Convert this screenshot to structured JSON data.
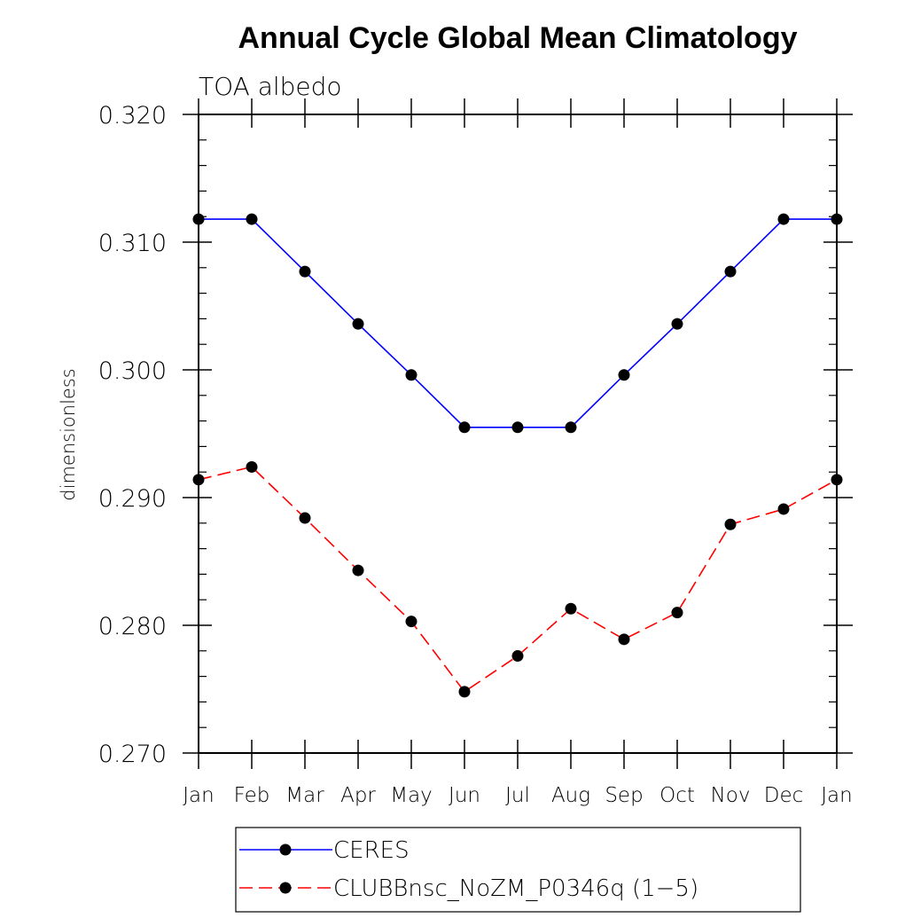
{
  "chart_data": {
    "type": "line",
    "title": "Annual Cycle Global Mean Climatology",
    "subtitle": "TOA albedo",
    "xlabel": "",
    "ylabel": "dimensionless",
    "ylim": [
      0.27,
      0.32
    ],
    "y_ticks": [
      "0.320",
      "0.310",
      "0.300",
      "0.290",
      "0.280",
      "0.270"
    ],
    "categories": [
      "Jan",
      "Feb",
      "Mar",
      "Apr",
      "May",
      "Jun",
      "Jul",
      "Aug",
      "Sep",
      "Oct",
      "Nov",
      "Dec",
      "Jan"
    ],
    "grid": false,
    "legend_position": "bottom",
    "series": [
      {
        "name": "CERES",
        "color": "#0000ff",
        "dashed": false,
        "values": [
          0.3118,
          0.3118,
          0.3077,
          0.3036,
          0.2996,
          0.2955,
          0.2955,
          0.2955,
          0.2996,
          0.3036,
          0.3077,
          0.3118,
          0.3118
        ]
      },
      {
        "name": "CLUBBnsc_NoZM_P0346q (1−5)",
        "color": "#ff0000",
        "dashed": true,
        "values": [
          0.2914,
          0.2924,
          0.2884,
          0.2843,
          0.2803,
          0.2748,
          0.2776,
          0.2813,
          0.2789,
          0.281,
          0.2879,
          0.2891,
          0.2914
        ]
      }
    ]
  }
}
